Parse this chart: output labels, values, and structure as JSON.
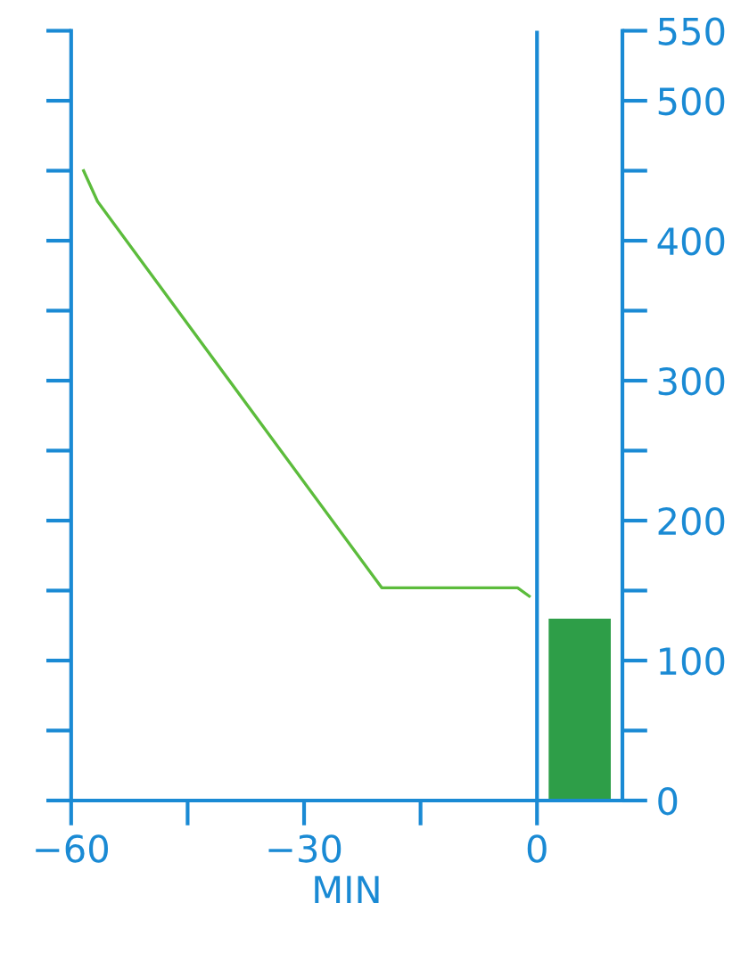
{
  "chart_data": {
    "type": "line",
    "xlabel": "MIN",
    "series": [
      {
        "color": "#5cbc3c",
        "x": [
          -58.4,
          -56.6,
          -20,
          -2.5,
          -1
        ],
        "values": [
          450,
          428,
          152,
          152,
          146
        ]
      },
      {
        "type": "bar",
        "color": "#2e9e48",
        "x": [
          5.5
        ],
        "values": [
          130
        ]
      }
    ],
    "xlim": [
      -60,
      11
    ],
    "xticks": [
      -60,
      {
        "value": -45,
        "label": null
      },
      -30,
      {
        "value": -15,
        "label": null
      },
      0
    ],
    "ylim": [
      0,
      550
    ],
    "yticks": [
      0,
      {
        "value": 50,
        "label": null
      },
      100,
      {
        "value": 150,
        "label": null
      },
      200,
      {
        "value": 250,
        "label": null
      },
      300,
      {
        "value": 350,
        "label": null
      },
      400,
      {
        "value": 450,
        "label": null
      },
      500,
      550
    ],
    "ref_lines": [
      {
        "axis": "x",
        "value": 0,
        "color": "#1a8ad4"
      }
    ],
    "grid": false,
    "marker": "none",
    "line_style": "solid"
  }
}
